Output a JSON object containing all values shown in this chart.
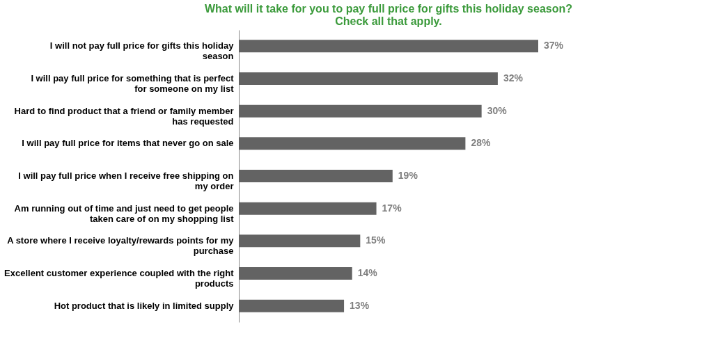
{
  "chart_data": {
    "type": "bar",
    "orientation": "horizontal",
    "title": "What will it take for you to pay full price for gifts this holiday season?\nCheck all that apply.",
    "categories": [
      "I will not pay full price for gifts this holiday season",
      "I will pay full price for something that is perfect for someone on my list",
      "Hard to find product that a friend or family member has requested",
      "I will pay full price for items that never go on sale",
      "I will pay full price when I receive free shipping on my order",
      "Am running out of time and just need to get people taken care of on my shopping list",
      "A store where I receive loyalty/rewards points for my purchase",
      "Excellent customer experience coupled with the right products",
      "Hot product that is likely in limited supply"
    ],
    "values": [
      37,
      32,
      30,
      28,
      19,
      17,
      15,
      14,
      13
    ],
    "value_labels": [
      "37%",
      "32%",
      "30%",
      "28%",
      "19%",
      "17%",
      "15%",
      "14%",
      "13%"
    ],
    "color": "#636363",
    "grid": false
  }
}
